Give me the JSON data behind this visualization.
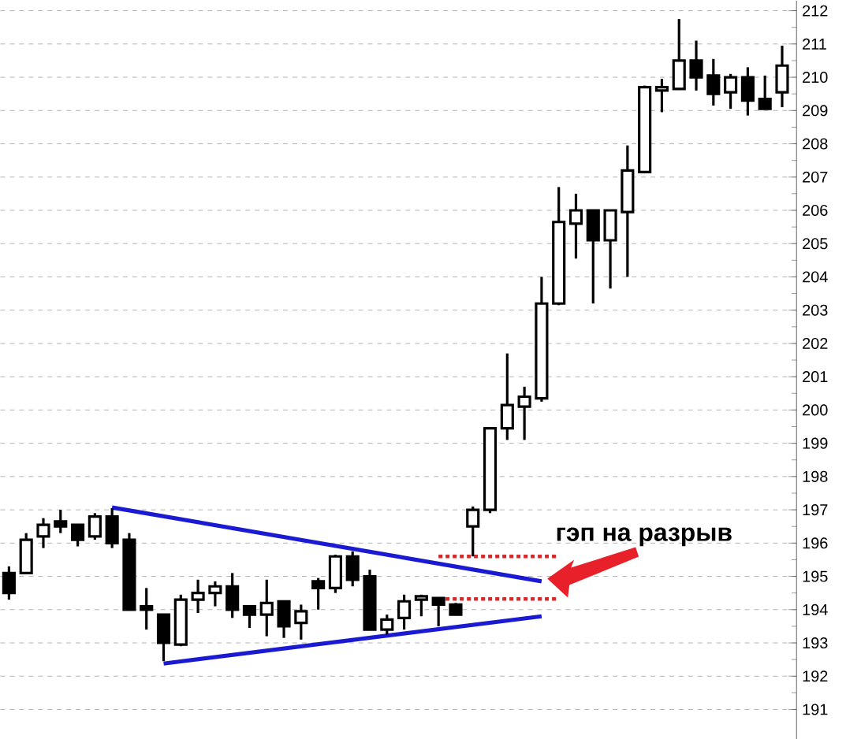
{
  "chart_data": {
    "type": "candlestick",
    "categories": [
      null,
      null,
      null,
      null,
      null,
      null,
      null,
      null,
      null,
      null,
      null,
      null,
      null,
      null,
      null,
      null,
      null,
      null,
      null,
      null,
      null,
      null,
      null,
      null,
      null,
      null,
      null,
      null,
      null,
      null,
      null,
      null,
      null,
      null,
      null,
      null,
      null,
      null,
      null,
      null,
      null,
      null,
      null,
      null,
      null,
      null
    ],
    "ohlc": [
      [
        195.1,
        195.3,
        194.3,
        194.5
      ],
      [
        195.1,
        196.3,
        195.1,
        196.1
      ],
      [
        196.2,
        196.75,
        195.85,
        196.55
      ],
      [
        196.65,
        197.0,
        196.3,
        196.5
      ],
      [
        196.55,
        196.55,
        195.9,
        196.1
      ],
      [
        196.2,
        196.9,
        196.1,
        196.8
      ],
      [
        196.8,
        197.05,
        195.85,
        196.0
      ],
      [
        196.1,
        196.3,
        194.0,
        194.0
      ],
      [
        194.1,
        194.65,
        193.4,
        194.0
      ],
      [
        193.85,
        193.85,
        192.45,
        193.0
      ],
      [
        192.95,
        194.45,
        192.9,
        194.3
      ],
      [
        194.3,
        194.9,
        193.9,
        194.5
      ],
      [
        194.5,
        194.85,
        194.1,
        194.7
      ],
      [
        194.7,
        195.1,
        193.75,
        194.0
      ],
      [
        194.1,
        194.1,
        193.45,
        193.85
      ],
      [
        193.85,
        194.9,
        193.2,
        194.2
      ],
      [
        194.25,
        194.25,
        193.15,
        193.5
      ],
      [
        193.6,
        194.15,
        193.1,
        193.95
      ],
      [
        194.85,
        194.95,
        194.0,
        194.65
      ],
      [
        194.65,
        195.65,
        194.5,
        195.6
      ],
      [
        195.6,
        195.75,
        194.7,
        194.9
      ],
      [
        195.0,
        195.2,
        193.4,
        193.4
      ],
      [
        193.4,
        193.85,
        193.25,
        193.7
      ],
      [
        193.75,
        194.45,
        193.4,
        194.25
      ],
      [
        194.3,
        194.45,
        193.8,
        194.4
      ],
      [
        194.35,
        194.35,
        193.5,
        194.15
      ],
      [
        194.15,
        194.2,
        193.85,
        193.85
      ],
      [
        196.5,
        197.1,
        195.6,
        197.0
      ],
      [
        197.0,
        199.45,
        196.9,
        199.45
      ],
      [
        199.45,
        201.7,
        199.1,
        200.15
      ],
      [
        200.1,
        200.7,
        199.1,
        200.4
      ],
      [
        200.35,
        204.0,
        200.25,
        203.2
      ],
      [
        203.2,
        206.7,
        203.15,
        205.65
      ],
      [
        205.6,
        206.5,
        204.55,
        206.0
      ],
      [
        206.0,
        206.0,
        203.2,
        205.1
      ],
      [
        205.1,
        206.0,
        203.65,
        206.0
      ],
      [
        205.95,
        207.95,
        204.0,
        207.2
      ],
      [
        207.15,
        209.75,
        207.15,
        209.7
      ],
      [
        209.6,
        209.95,
        208.95,
        209.7
      ],
      [
        209.65,
        211.75,
        209.65,
        210.5
      ],
      [
        210.5,
        211.1,
        209.6,
        210.0
      ],
      [
        210.05,
        210.55,
        209.15,
        209.5
      ],
      [
        209.55,
        210.1,
        209.05,
        210.0
      ],
      [
        210.0,
        210.3,
        208.85,
        209.3
      ],
      [
        209.35,
        210.05,
        209.05,
        209.05
      ],
      [
        209.55,
        210.95,
        209.1,
        210.35
      ]
    ],
    "series": [
      {
        "type": "line",
        "color": "#1a1ad2",
        "line_style": "solid",
        "values": [
          null,
          null,
          null,
          null,
          null,
          null,
          197.07,
          null,
          null,
          null,
          null,
          null,
          null,
          null,
          null,
          null,
          null,
          null,
          null,
          null,
          null,
          null,
          null,
          null,
          null,
          null,
          null,
          null,
          null,
          null,
          null,
          194.85,
          null,
          null,
          null,
          null,
          null,
          null,
          null,
          null,
          null,
          null,
          null,
          null,
          null,
          null
        ]
      },
      {
        "type": "line",
        "color": "#1a1ad2",
        "line_style": "solid",
        "values": [
          null,
          null,
          null,
          null,
          null,
          null,
          null,
          null,
          null,
          192.38,
          null,
          null,
          null,
          null,
          null,
          null,
          null,
          null,
          null,
          null,
          null,
          null,
          null,
          null,
          null,
          null,
          null,
          null,
          null,
          null,
          null,
          193.8,
          null,
          null,
          null,
          null,
          null,
          null,
          null,
          null,
          null,
          null,
          null,
          null,
          null,
          null
        ]
      },
      {
        "type": "line",
        "color": "#d42a2a",
        "line_style": "dotted",
        "values": [
          null,
          null,
          null,
          null,
          null,
          null,
          null,
          null,
          null,
          null,
          null,
          null,
          null,
          null,
          null,
          null,
          null,
          null,
          null,
          null,
          null,
          null,
          null,
          null,
          null,
          195.6,
          null,
          null,
          null,
          null,
          null,
          null,
          195.6,
          null,
          null,
          null,
          null,
          null,
          null,
          null,
          null,
          null,
          null,
          null,
          null,
          null
        ]
      },
      {
        "type": "line",
        "color": "#d42a2a",
        "line_style": "dotted",
        "values": [
          null,
          null,
          null,
          null,
          null,
          null,
          null,
          null,
          null,
          null,
          null,
          null,
          null,
          null,
          null,
          null,
          null,
          null,
          null,
          null,
          null,
          null,
          null,
          null,
          null,
          194.32,
          null,
          null,
          null,
          null,
          null,
          null,
          194.32,
          null,
          null,
          null,
          null,
          null,
          null,
          null,
          null,
          null,
          null,
          null,
          null,
          null
        ]
      }
    ],
    "ylim": [
      190.1,
      212.3
    ],
    "yticks": [
      191,
      192,
      193,
      194,
      195,
      196,
      197,
      198,
      199,
      200,
      201,
      202,
      203,
      204,
      205,
      206,
      207,
      208,
      209,
      210,
      211,
      212
    ],
    "grid": true,
    "annotations": [
      "гэп на разрыв"
    ]
  }
}
